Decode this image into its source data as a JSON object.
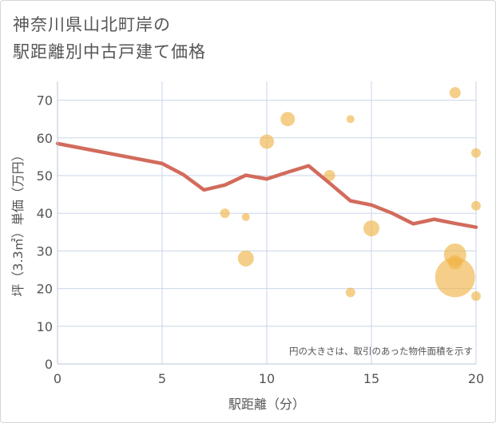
{
  "chart_data": {
    "type": "scatter",
    "title_lines": [
      "神奈川県山北町岸の",
      "駅距離別中古戸建て価格"
    ],
    "xlabel": "駅距離（分）",
    "ylabel": "坪（3.3㎡）単価（万円）",
    "annotation": "円の大きさは、取引のあった物件面積を示す",
    "xlim": [
      0,
      20
    ],
    "ylim": [
      0,
      75
    ],
    "x_ticks": [
      0,
      5,
      10,
      15,
      20
    ],
    "y_ticks": [
      0,
      10,
      20,
      30,
      40,
      50,
      60,
      70
    ],
    "grid": true,
    "colors": {
      "bubble": "#f0b54a",
      "line": "#d26b5c",
      "grid": "#c9d6e8",
      "axis_text": "#555555"
    },
    "trend_line": {
      "x": [
        0,
        5,
        6,
        7,
        8,
        9,
        10,
        11,
        12,
        13,
        14,
        15,
        16,
        17,
        18,
        19,
        20
      ],
      "y": [
        58.5,
        53.2,
        50.3,
        46.2,
        47.5,
        50.1,
        49.1,
        50.9,
        52.6,
        48.0,
        43.3,
        42.2,
        40.0,
        37.2,
        38.4,
        37.3,
        36.3
      ]
    },
    "bubbles": [
      {
        "x": 8,
        "y": 40,
        "size": 6
      },
      {
        "x": 9,
        "y": 39,
        "size": 5
      },
      {
        "x": 9,
        "y": 28,
        "size": 10
      },
      {
        "x": 10,
        "y": 59,
        "size": 9
      },
      {
        "x": 11,
        "y": 65,
        "size": 9
      },
      {
        "x": 13,
        "y": 50,
        "size": 7
      },
      {
        "x": 14,
        "y": 65,
        "size": 5
      },
      {
        "x": 14,
        "y": 19,
        "size": 6
      },
      {
        "x": 15,
        "y": 36,
        "size": 10
      },
      {
        "x": 19,
        "y": 72,
        "size": 7
      },
      {
        "x": 19,
        "y": 29,
        "size": 14
      },
      {
        "x": 19,
        "y": 27,
        "size": 9
      },
      {
        "x": 19,
        "y": 23,
        "size": 25
      },
      {
        "x": 20,
        "y": 56,
        "size": 6
      },
      {
        "x": 20,
        "y": 42,
        "size": 6
      },
      {
        "x": 20,
        "y": 18,
        "size": 6
      }
    ]
  }
}
